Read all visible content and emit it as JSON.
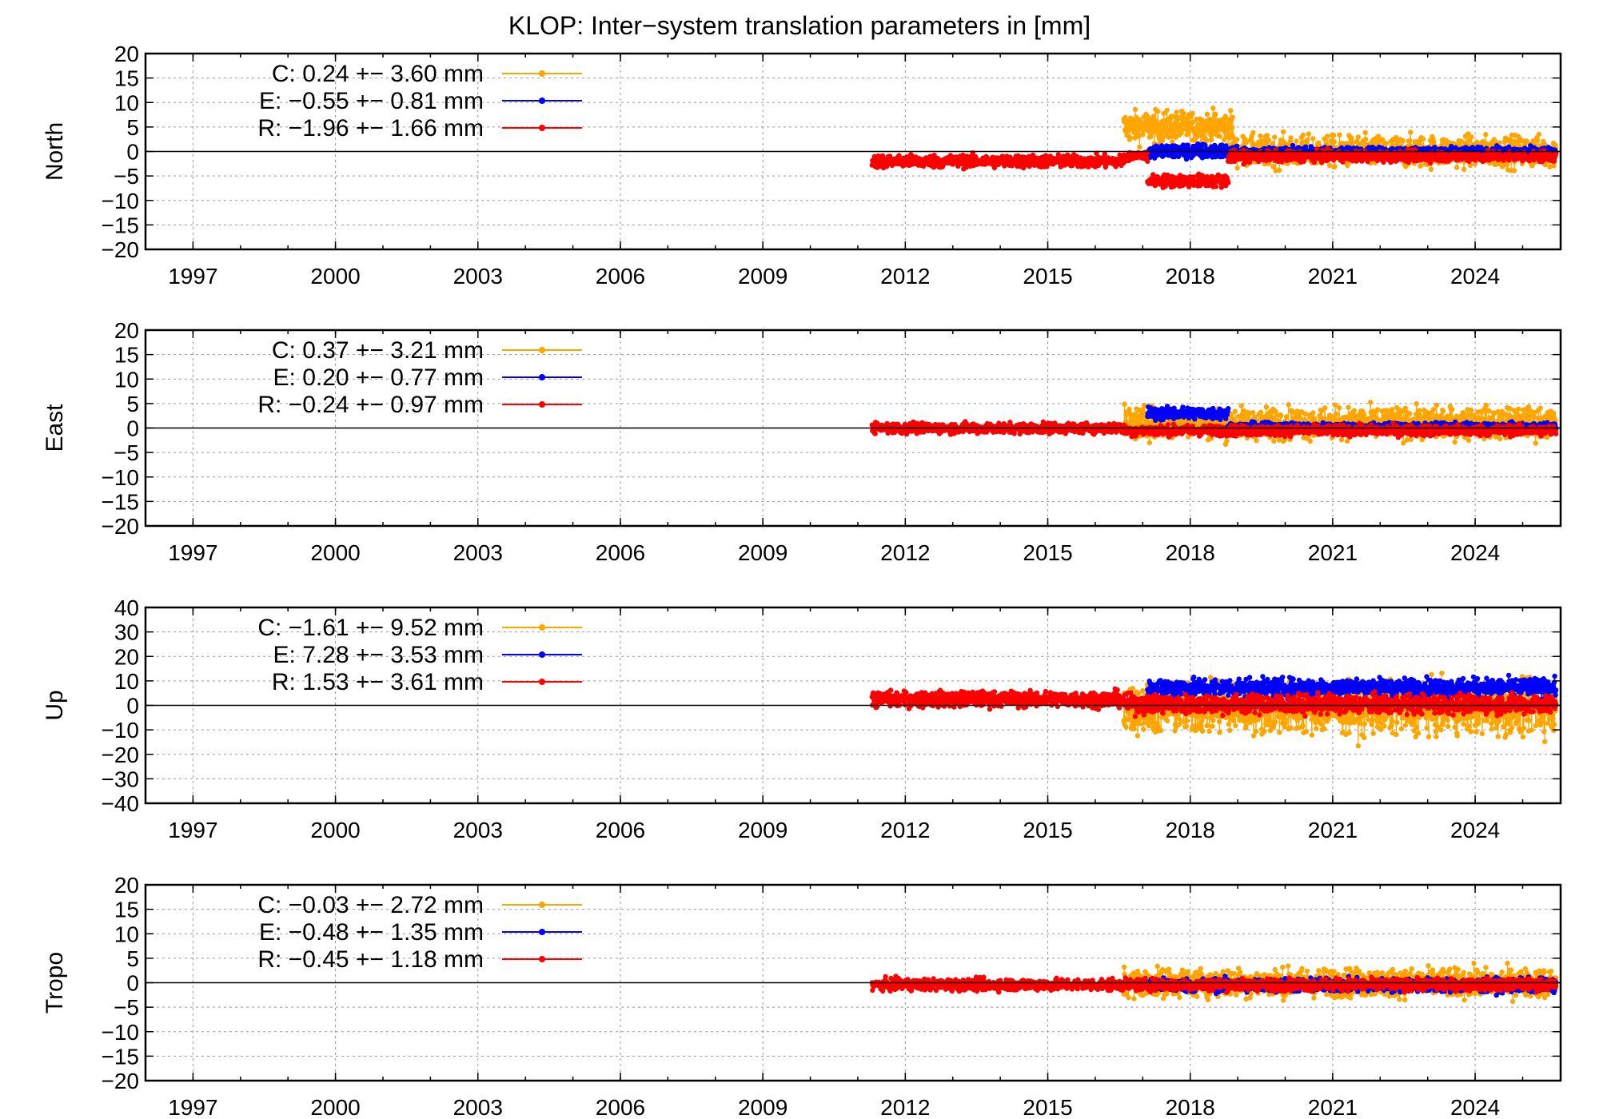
{
  "title": "KLOP: Inter−system translation parameters in [mm]",
  "colors": {
    "C": "#ffa500",
    "E": "#0000ff",
    "R": "#ff0000"
  },
  "x_ticks": [
    1997,
    2000,
    2003,
    2006,
    2009,
    2012,
    2015,
    2018,
    2021,
    2024
  ],
  "chart_data": [
    {
      "type": "scatter",
      "ylabel": "North",
      "xlim": [
        1996,
        2025.8
      ],
      "ylim": [
        -20,
        20
      ],
      "yticks": [
        20,
        15,
        10,
        5,
        0,
        -5,
        -10,
        -15,
        -20
      ],
      "grid": true,
      "legend_position": "top-left",
      "series": [
        {
          "name": "C",
          "label": "C:   0.24 +− 3.60 mm",
          "segments": [
            {
              "x": [
                2016.6,
                2018.9
              ],
              "mean": 5.0,
              "spread": 3.0
            },
            {
              "x": [
                2018.9,
                2025.7
              ],
              "mean": 0.0,
              "spread": 3.0
            }
          ]
        },
        {
          "name": "E",
          "label": "E:  −0.55 +− 0.81 mm",
          "segments": [
            {
              "x": [
                2017.1,
                2018.8
              ],
              "mean": 0.0,
              "spread": 1.5
            },
            {
              "x": [
                2018.8,
                2025.7
              ],
              "mean": 0.0,
              "spread": 0.8
            }
          ]
        },
        {
          "name": "R",
          "label": "R:  −1.96 +− 1.66 mm",
          "segments": [
            {
              "x": [
                2011.3,
                2016.6
              ],
              "mean": -2.0,
              "spread": 1.2
            },
            {
              "x": [
                2017.1,
                2018.8
              ],
              "mean": -6.0,
              "spread": 1.2
            },
            {
              "x": [
                2016.6,
                2017.1
              ],
              "mean": -1.0,
              "spread": 1.0
            },
            {
              "x": [
                2018.8,
                2025.7
              ],
              "mean": -1.0,
              "spread": 1.0
            }
          ]
        }
      ]
    },
    {
      "type": "scatter",
      "ylabel": "East",
      "xlim": [
        1996,
        2025.8
      ],
      "ylim": [
        -20,
        20
      ],
      "yticks": [
        20,
        15,
        10,
        5,
        0,
        -5,
        -10,
        -15,
        -20
      ],
      "grid": true,
      "legend_position": "top-left",
      "series": [
        {
          "name": "C",
          "label": "C:   0.37 +− 3.21 mm",
          "segments": [
            {
              "x": [
                2016.6,
                2025.7
              ],
              "mean": 1.0,
              "spread": 3.0
            }
          ]
        },
        {
          "name": "E",
          "label": "E:   0.20 +− 0.77 mm",
          "segments": [
            {
              "x": [
                2017.1,
                2018.8
              ],
              "mean": 3.0,
              "spread": 1.2
            },
            {
              "x": [
                2018.8,
                2025.7
              ],
              "mean": 0.3,
              "spread": 0.7
            }
          ]
        },
        {
          "name": "R",
          "label": "R:  −0.24 +− 0.97 mm",
          "segments": [
            {
              "x": [
                2011.3,
                2016.6
              ],
              "mean": 0.0,
              "spread": 1.0
            },
            {
              "x": [
                2016.6,
                2025.7
              ],
              "mean": -0.5,
              "spread": 1.0
            }
          ]
        }
      ]
    },
    {
      "type": "scatter",
      "ylabel": "Up",
      "xlim": [
        1996,
        2025.8
      ],
      "ylim": [
        -40,
        40
      ],
      "yticks": [
        40,
        30,
        20,
        10,
        0,
        -10,
        -20,
        -30,
        -40
      ],
      "grid": true,
      "legend_position": "top-left",
      "series": [
        {
          "name": "C",
          "label": "C:  −1.61 +− 9.52 mm",
          "segments": [
            {
              "x": [
                2016.6,
                2025.7
              ],
              "mean": -1.6,
              "spread": 9.5
            }
          ]
        },
        {
          "name": "E",
          "label": "E:   7.28 +− 3.53 mm",
          "segments": [
            {
              "x": [
                2017.1,
                2025.7
              ],
              "mean": 7.3,
              "spread": 3.5
            }
          ]
        },
        {
          "name": "R",
          "label": "R:   1.53 +− 3.61 mm",
          "segments": [
            {
              "x": [
                2011.3,
                2016.6
              ],
              "mean": 2.5,
              "spread": 3.0
            },
            {
              "x": [
                2016.6,
                2025.7
              ],
              "mean": 0.5,
              "spread": 3.6
            }
          ]
        }
      ]
    },
    {
      "type": "scatter",
      "ylabel": "Tropo",
      "xlim": [
        1996,
        2025.8
      ],
      "ylim": [
        -20,
        20
      ],
      "yticks": [
        20,
        15,
        10,
        5,
        0,
        -5,
        -10,
        -15,
        -20
      ],
      "grid": true,
      "legend_position": "top-left",
      "series": [
        {
          "name": "C",
          "label": "C:  −0.03 +− 2.72 mm",
          "segments": [
            {
              "x": [
                2016.6,
                2025.7
              ],
              "mean": 0.0,
              "spread": 2.7
            }
          ]
        },
        {
          "name": "E",
          "label": "E:  −0.48 +− 1.35 mm",
          "segments": [
            {
              "x": [
                2017.1,
                2025.7
              ],
              "mean": -0.5,
              "spread": 1.3
            }
          ]
        },
        {
          "name": "R",
          "label": "R:  −0.45 +− 1.18 mm",
          "segments": [
            {
              "x": [
                2011.3,
                2025.7
              ],
              "mean": -0.4,
              "spread": 1.1
            }
          ]
        }
      ]
    }
  ]
}
